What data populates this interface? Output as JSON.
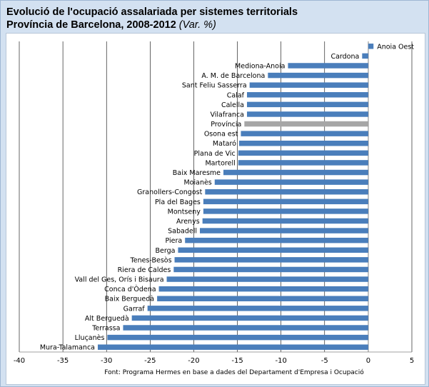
{
  "title": "Evolució de l'ocupació assalariada per sistemes territorials",
  "subtitle": "Província de Barcelona, 2008-2012",
  "unit": "(Var. %)",
  "source": "Font: Programa Hermes en base a dades del Departament d'Empresa i Ocupació",
  "colors": {
    "bar": "#4a7ebb",
    "highlight": "#a6a6a6",
    "grid": "#000000",
    "background": "#d3e1f1"
  },
  "chart_data": {
    "type": "bar",
    "orientation": "horizontal",
    "title": "Evolució de l'ocupació assalariada per sistemes territorials",
    "subtitle": "Província de Barcelona, 2008-2012",
    "xlim": [
      -40,
      5
    ],
    "xticks": [
      -40,
      -35,
      -30,
      -25,
      -20,
      -15,
      -10,
      -5,
      0,
      5
    ],
    "grid": true,
    "highlight": "Província",
    "categories": [
      "Anoia Oest",
      "Cardona",
      "Mediona-Anoia",
      "A. M. de Barcelona",
      "Sant Feliu Sasserra",
      "Calaf",
      "Calella",
      "Vilafranca",
      "Província",
      "Osona est",
      "Mataró",
      "Plana de Vic",
      "Martorell",
      "Baix Maresme",
      "Moianès",
      "Granollers-Congost",
      "Pla del Bages",
      "Montseny",
      "Arenys",
      "Sabadell",
      "Piera",
      "Berga",
      "Tenes-Besòs",
      "Riera de Caldes",
      "Vall del Ges, Orís i Bisaura",
      "Conca d'Òdena",
      "Baix Berguedà",
      "Garraf",
      "Alt Berguedà",
      "Terrassa",
      "Lluçanès",
      "Mura-Talamanca"
    ],
    "values": [
      0.6,
      -0.7,
      -9.2,
      -11.5,
      -13.6,
      -13.9,
      -13.9,
      -13.9,
      -14.2,
      -14.6,
      -14.8,
      -14.9,
      -14.9,
      -16.6,
      -17.6,
      -18.7,
      -18.9,
      -18.9,
      -19.0,
      -19.3,
      -21.0,
      -21.8,
      -22.2,
      -22.3,
      -23.1,
      -24.0,
      -24.2,
      -25.3,
      -27.1,
      -28.1,
      -29.9,
      -31.0
    ]
  }
}
